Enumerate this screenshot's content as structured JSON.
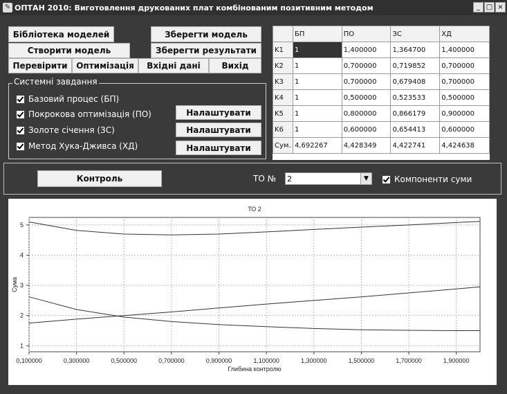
{
  "window": {
    "title": "ОПТАН 2010: Виготовлення друкованих плат комбінованим позитивним методом",
    "minimize": "_",
    "maximize": "□",
    "close": "×"
  },
  "toolbar": {
    "library": "Бібліотека моделей",
    "save_model": "Зберегти модель",
    "create_model": "Створити модель",
    "save_results": "Зберегти результати",
    "check": "Перевірити",
    "optimization": "Оптимізація",
    "input_data": "Вхідні дані",
    "exit": "Вихід"
  },
  "tasks": {
    "label": "Системні завдання",
    "items": [
      {
        "label": "Базовий процес (БП)",
        "checked": true
      },
      {
        "label": "Покрокова оптимізація (ПО)",
        "checked": true,
        "button": "Налаштувати"
      },
      {
        "label": "Золоте січення (ЗС)",
        "checked": true,
        "button": "Налаштувати"
      },
      {
        "label": "Метод Хука-Дживса (ХД)",
        "checked": true,
        "button": "Налаштувати"
      }
    ]
  },
  "grid": {
    "headers": [
      "",
      "БП",
      "ПО",
      "ЗС",
      "ХД"
    ],
    "rows": [
      [
        "K1",
        "1",
        "1,400000",
        "1,364700",
        "1,400000"
      ],
      [
        "K2",
        "1",
        "0,700000",
        "0,719852",
        "0,700000"
      ],
      [
        "K3",
        "1",
        "0,700000",
        "0,679408",
        "0,700000"
      ],
      [
        "K4",
        "1",
        "0,500000",
        "0,523533",
        "0,500000"
      ],
      [
        "K5",
        "1",
        "0,800000",
        "0,866179",
        "0,900000"
      ],
      [
        "K6",
        "1",
        "0,600000",
        "0,654413",
        "0,600000"
      ],
      [
        "Сум.",
        "4,692267",
        "4,428349",
        "4,422741",
        "4,424638"
      ]
    ]
  },
  "controls": {
    "control_button": "Контроль",
    "to_label": "ТО №",
    "to_value": "2",
    "components_label": "Компоненти суми",
    "components_checked": true
  },
  "chart_data": {
    "type": "line",
    "title": "ТО 2",
    "xlabel": "Глибина контролю",
    "ylabel": "Сума",
    "xlim": [
      0.1,
      2.0
    ],
    "ylim": [
      0.8,
      5.25
    ],
    "xticks": [
      "0,100000",
      "0,300000",
      "0,500000",
      "0,700000",
      "0,900000",
      "1,100000",
      "1,300000",
      "1,500000",
      "1,700000",
      "1,900000"
    ],
    "xtick_values": [
      0.1,
      0.3,
      0.5,
      0.7,
      0.9,
      1.1,
      1.3,
      1.5,
      1.7,
      1.9
    ],
    "yticks": [
      1,
      2,
      3,
      4,
      5
    ],
    "grid": true,
    "x": [
      0.1,
      0.3,
      0.5,
      0.7,
      0.9,
      1.1,
      1.3,
      1.5,
      1.7,
      1.9,
      2.0
    ],
    "series": [
      {
        "values": [
          5.1,
          4.82,
          4.7,
          4.67,
          4.7,
          4.77,
          4.85,
          4.93,
          5.0,
          5.08,
          5.12
        ]
      },
      {
        "values": [
          2.62,
          2.2,
          1.95,
          1.8,
          1.7,
          1.63,
          1.57,
          1.53,
          1.51,
          1.5,
          1.5
        ]
      },
      {
        "values": [
          1.75,
          1.88,
          2.0,
          2.12,
          2.25,
          2.38,
          2.5,
          2.62,
          2.75,
          2.88,
          2.95
        ]
      }
    ]
  }
}
